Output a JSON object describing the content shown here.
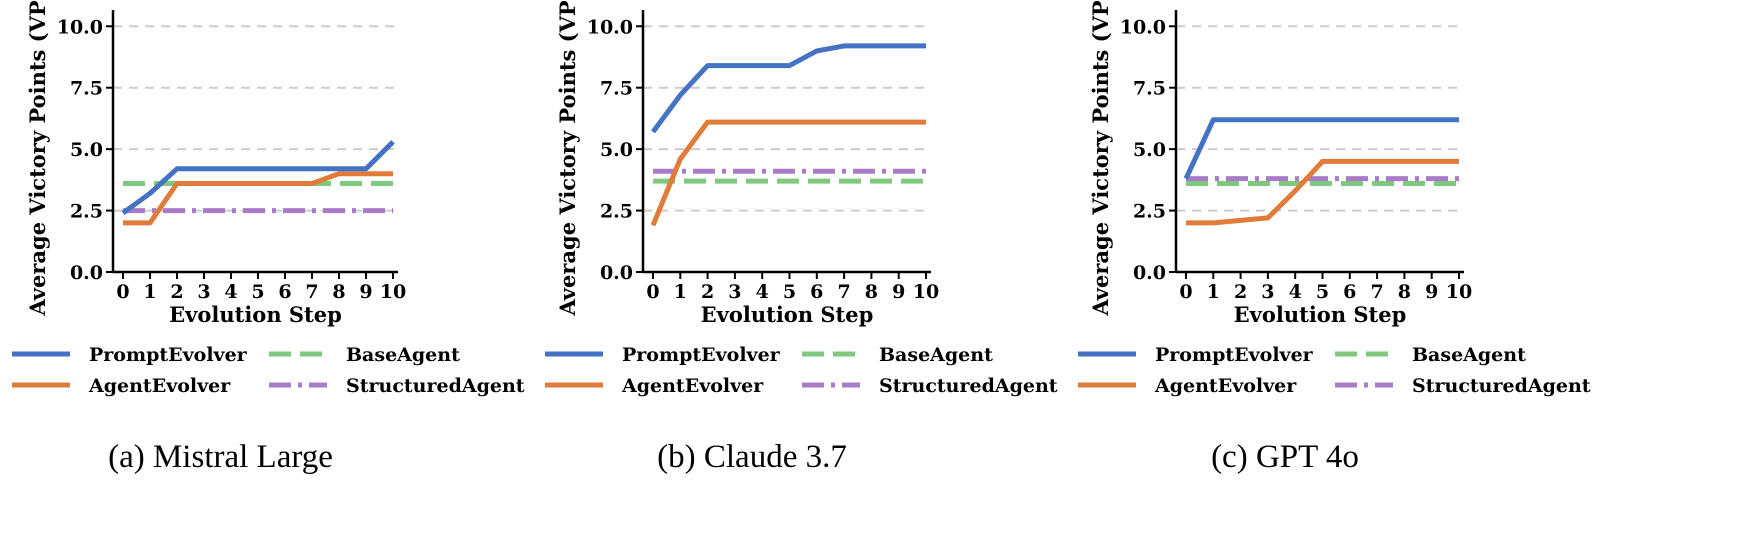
{
  "chart_data": [
    {
      "type": "line",
      "caption": "(a) Mistral Large",
      "xlabel": "Evolution Step",
      "ylabel": "Average Victory Points (VP)",
      "ylim": [
        0,
        10.5
      ],
      "yticks": [
        "0.0",
        "2.5",
        "5.0",
        "7.5",
        "10.0"
      ],
      "x": [
        0,
        1,
        2,
        3,
        4,
        5,
        6,
        7,
        8,
        9,
        10
      ],
      "grid": "horizontal dashed",
      "legend_position": "bottom, 2 columns",
      "series": [
        {
          "name": "PromptEvolver",
          "color": "#4472c4",
          "style": "solid",
          "values": [
            2.4,
            3.2,
            4.2,
            4.2,
            4.2,
            4.2,
            4.2,
            4.2,
            4.2,
            4.2,
            5.3
          ]
        },
        {
          "name": "AgentEvolver",
          "color": "#e07b39",
          "style": "solid",
          "values": [
            2.0,
            2.0,
            3.6,
            3.6,
            3.6,
            3.6,
            3.6,
            3.6,
            4.0,
            4.0,
            4.0
          ]
        },
        {
          "name": "BaseAgent",
          "color": "#7fc97f",
          "style": "dashed",
          "values": [
            3.6,
            3.6,
            3.6,
            3.6,
            3.6,
            3.6,
            3.6,
            3.6,
            3.6,
            3.6,
            3.6
          ]
        },
        {
          "name": "StructuredAgent",
          "color": "#a97cc9",
          "style": "dashdot",
          "values": [
            2.5,
            2.5,
            2.5,
            2.5,
            2.5,
            2.5,
            2.5,
            2.5,
            2.5,
            2.5,
            2.5
          ]
        }
      ]
    },
    {
      "type": "line",
      "caption": "(b) Claude 3.7",
      "xlabel": "Evolution Step",
      "ylabel": "Average Victory Points (VP)",
      "ylim": [
        0,
        10.5
      ],
      "yticks": [
        "0.0",
        "2.5",
        "5.0",
        "7.5",
        "10.0"
      ],
      "x": [
        0,
        1,
        2,
        3,
        4,
        5,
        6,
        7,
        8,
        9,
        10
      ],
      "grid": "horizontal dashed",
      "legend_position": "bottom, 2 columns",
      "series": [
        {
          "name": "PromptEvolver",
          "color": "#4472c4",
          "style": "solid",
          "values": [
            5.7,
            7.2,
            8.4,
            8.4,
            8.4,
            8.4,
            9.0,
            9.2,
            9.2,
            9.2,
            9.2
          ]
        },
        {
          "name": "AgentEvolver",
          "color": "#e07b39",
          "style": "solid",
          "values": [
            1.9,
            4.6,
            6.1,
            6.1,
            6.1,
            6.1,
            6.1,
            6.1,
            6.1,
            6.1,
            6.1
          ]
        },
        {
          "name": "BaseAgent",
          "color": "#7fc97f",
          "style": "dashed",
          "values": [
            3.7,
            3.7,
            3.7,
            3.7,
            3.7,
            3.7,
            3.7,
            3.7,
            3.7,
            3.7,
            3.7
          ]
        },
        {
          "name": "StructuredAgent",
          "color": "#a97cc9",
          "style": "dashdot",
          "values": [
            4.1,
            4.1,
            4.1,
            4.1,
            4.1,
            4.1,
            4.1,
            4.1,
            4.1,
            4.1,
            4.1
          ]
        }
      ]
    },
    {
      "type": "line",
      "caption": "(c) GPT 4o",
      "xlabel": "Evolution Step",
      "ylabel": "Average Victory Points (VP)",
      "ylim": [
        0,
        10.5
      ],
      "yticks": [
        "0.0",
        "2.5",
        "5.0",
        "7.5",
        "10.0"
      ],
      "x": [
        0,
        1,
        2,
        3,
        4,
        5,
        6,
        7,
        8,
        9,
        10
      ],
      "grid": "horizontal dashed",
      "legend_position": "bottom, 2 columns",
      "series": [
        {
          "name": "PromptEvolver",
          "color": "#4472c4",
          "style": "solid",
          "values": [
            3.8,
            6.2,
            6.2,
            6.2,
            6.2,
            6.2,
            6.2,
            6.2,
            6.2,
            6.2,
            6.2
          ]
        },
        {
          "name": "AgentEvolver",
          "color": "#e07b39",
          "style": "solid",
          "values": [
            2.0,
            2.0,
            2.1,
            2.2,
            3.3,
            4.5,
            4.5,
            4.5,
            4.5,
            4.5,
            4.5
          ]
        },
        {
          "name": "BaseAgent",
          "color": "#7fc97f",
          "style": "dashed",
          "values": [
            3.6,
            3.6,
            3.6,
            3.6,
            3.6,
            3.6,
            3.6,
            3.6,
            3.6,
            3.6,
            3.6
          ]
        },
        {
          "name": "StructuredAgent",
          "color": "#a97cc9",
          "style": "dashdot",
          "values": [
            3.8,
            3.8,
            3.8,
            3.8,
            3.8,
            3.8,
            3.8,
            3.8,
            3.8,
            3.8,
            3.8
          ]
        }
      ]
    }
  ]
}
